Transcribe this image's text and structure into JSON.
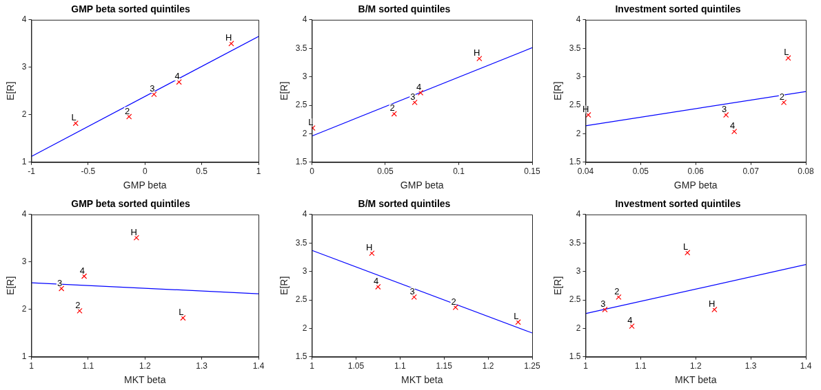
{
  "chart_data": [
    {
      "type": "scatter",
      "title": "GMP beta sorted quintiles",
      "xlabel": "GMP beta",
      "ylabel": "E[R]",
      "xlim": [
        -1,
        1
      ],
      "xticks": [
        -1,
        -0.5,
        0,
        0.5,
        1
      ],
      "ylim": [
        1,
        4
      ],
      "yticks": [
        1,
        2,
        3,
        4
      ],
      "grid": false,
      "legend": false,
      "series": [
        {
          "type": "scatter",
          "color": "#ff0000",
          "marker": "cross",
          "x": [
            -0.61,
            -0.14,
            0.08,
            0.3,
            0.76
          ],
          "values": [
            1.82,
            1.96,
            2.43,
            2.69,
            3.5
          ]
        },
        {
          "type": "line",
          "color": "#0000ff",
          "marker": "none",
          "x": [
            -1,
            1
          ],
          "values": [
            1.12,
            3.65
          ]
        }
      ],
      "annotations": [
        {
          "text": "L",
          "x": -0.61,
          "y": 1.82
        },
        {
          "text": "2",
          "x": -0.14,
          "y": 1.96
        },
        {
          "text": "3",
          "x": 0.08,
          "y": 2.43
        },
        {
          "text": "4",
          "x": 0.3,
          "y": 2.69
        },
        {
          "text": "H",
          "x": 0.76,
          "y": 3.5
        }
      ]
    },
    {
      "type": "scatter",
      "title": "B/M sorted quintiles",
      "xlabel": "GMP beta",
      "ylabel": "E[R]",
      "xlim": [
        0,
        0.15
      ],
      "xticks": [
        0,
        0.05,
        0.1,
        0.15
      ],
      "ylim": [
        1.5,
        4
      ],
      "yticks": [
        1.5,
        2,
        2.5,
        3,
        3.5,
        4
      ],
      "grid": false,
      "legend": false,
      "series": [
        {
          "type": "scatter",
          "color": "#ff0000",
          "marker": "cross",
          "x": [
            0.0005,
            0.056,
            0.07,
            0.074,
            0.114
          ],
          "values": [
            2.1,
            2.35,
            2.55,
            2.72,
            3.32
          ]
        },
        {
          "type": "line",
          "color": "#0000ff",
          "marker": "none",
          "x": [
            0,
            0.15
          ],
          "values": [
            1.96,
            3.51
          ]
        }
      ],
      "annotations": [
        {
          "text": "L",
          "x": 0.0005,
          "y": 2.1
        },
        {
          "text": "2",
          "x": 0.056,
          "y": 2.35
        },
        {
          "text": "3",
          "x": 0.07,
          "y": 2.55
        },
        {
          "text": "4",
          "x": 0.074,
          "y": 2.72
        },
        {
          "text": "H",
          "x": 0.114,
          "y": 3.32
        }
      ]
    },
    {
      "type": "scatter",
      "title": "Investment sorted quintiles",
      "xlabel": "GMP beta",
      "ylabel": "E[R]",
      "xlim": [
        0.04,
        0.08
      ],
      "xticks": [
        0.04,
        0.05,
        0.06,
        0.07,
        0.08
      ],
      "ylim": [
        1.5,
        4
      ],
      "yticks": [
        1.5,
        2,
        2.5,
        3,
        3.5,
        4
      ],
      "grid": false,
      "legend": false,
      "series": [
        {
          "type": "scatter",
          "color": "#ff0000",
          "marker": "cross",
          "x": [
            0.0768,
            0.076,
            0.0655,
            0.067,
            0.0405
          ],
          "values": [
            3.33,
            2.55,
            2.33,
            2.04,
            2.33
          ]
        },
        {
          "type": "line",
          "color": "#0000ff",
          "marker": "none",
          "x": [
            0.04,
            0.08
          ],
          "values": [
            2.14,
            2.74
          ]
        }
      ],
      "annotations": [
        {
          "text": "L",
          "x": 0.0768,
          "y": 3.33
        },
        {
          "text": "2",
          "x": 0.076,
          "y": 2.55
        },
        {
          "text": "3",
          "x": 0.0655,
          "y": 2.33
        },
        {
          "text": "4",
          "x": 0.067,
          "y": 2.04
        },
        {
          "text": "H",
          "x": 0.0405,
          "y": 2.33
        }
      ]
    },
    {
      "type": "scatter",
      "title": "GMP beta sorted quintiles",
      "xlabel": "MKT beta",
      "ylabel": "E[R]",
      "xlim": [
        1,
        1.4
      ],
      "xticks": [
        1,
        1.1,
        1.2,
        1.3,
        1.4
      ],
      "ylim": [
        1,
        4
      ],
      "yticks": [
        1,
        2,
        3,
        4
      ],
      "grid": false,
      "legend": false,
      "series": [
        {
          "type": "scatter",
          "color": "#ff0000",
          "marker": "cross",
          "x": [
            1.267,
            1.085,
            1.053,
            1.093,
            1.185
          ],
          "values": [
            1.82,
            1.97,
            2.44,
            2.7,
            3.51
          ]
        },
        {
          "type": "line",
          "color": "#0000ff",
          "marker": "none",
          "x": [
            1,
            1.4
          ],
          "values": [
            2.56,
            2.33
          ]
        }
      ],
      "annotations": [
        {
          "text": "L",
          "x": 1.267,
          "y": 1.82
        },
        {
          "text": "2",
          "x": 1.085,
          "y": 1.97
        },
        {
          "text": "3",
          "x": 1.053,
          "y": 2.44
        },
        {
          "text": "4",
          "x": 1.093,
          "y": 2.7
        },
        {
          "text": "H",
          "x": 1.185,
          "y": 3.51
        }
      ]
    },
    {
      "type": "scatter",
      "title": "B/M sorted quintiles",
      "xlabel": "MKT beta",
      "ylabel": "E[R]",
      "xlim": [
        1,
        1.25
      ],
      "xticks": [
        1,
        1.05,
        1.1,
        1.15,
        1.2,
        1.25
      ],
      "ylim": [
        1.5,
        4
      ],
      "yticks": [
        1.5,
        2,
        2.5,
        3,
        3.5,
        4
      ],
      "grid": false,
      "legend": false,
      "series": [
        {
          "type": "scatter",
          "color": "#ff0000",
          "marker": "cross",
          "x": [
            1.234,
            1.163,
            1.116,
            1.075,
            1.068
          ],
          "values": [
            2.11,
            2.37,
            2.55,
            2.73,
            3.32
          ]
        },
        {
          "type": "line",
          "color": "#0000ff",
          "marker": "none",
          "x": [
            1,
            1.25
          ],
          "values": [
            3.37,
            1.92
          ]
        }
      ],
      "annotations": [
        {
          "text": "L",
          "x": 1.234,
          "y": 2.11
        },
        {
          "text": "2",
          "x": 1.163,
          "y": 2.37
        },
        {
          "text": "3",
          "x": 1.116,
          "y": 2.55
        },
        {
          "text": "4",
          "x": 1.075,
          "y": 2.73
        },
        {
          "text": "H",
          "x": 1.068,
          "y": 3.32
        }
      ]
    },
    {
      "type": "scatter",
      "title": "Investment sorted quintiles",
      "xlabel": "MKT beta",
      "ylabel": "E[R]",
      "xlim": [
        1,
        1.4
      ],
      "xticks": [
        1,
        1.1,
        1.2,
        1.3,
        1.4
      ],
      "ylim": [
        1.5,
        4
      ],
      "yticks": [
        1.5,
        2,
        2.5,
        3,
        3.5,
        4
      ],
      "grid": false,
      "legend": false,
      "series": [
        {
          "type": "scatter",
          "color": "#ff0000",
          "marker": "cross",
          "x": [
            1.185,
            1.06,
            1.035,
            1.084,
            1.234
          ],
          "values": [
            3.33,
            2.55,
            2.33,
            2.04,
            2.33
          ]
        },
        {
          "type": "line",
          "color": "#0000ff",
          "marker": "none",
          "x": [
            1,
            1.4
          ],
          "values": [
            2.26,
            3.12
          ]
        }
      ],
      "annotations": [
        {
          "text": "L",
          "x": 1.185,
          "y": 3.33
        },
        {
          "text": "2",
          "x": 1.06,
          "y": 2.55
        },
        {
          "text": "3",
          "x": 1.035,
          "y": 2.33
        },
        {
          "text": "4",
          "x": 1.084,
          "y": 2.04
        },
        {
          "text": "H",
          "x": 1.234,
          "y": 2.33
        }
      ]
    }
  ]
}
